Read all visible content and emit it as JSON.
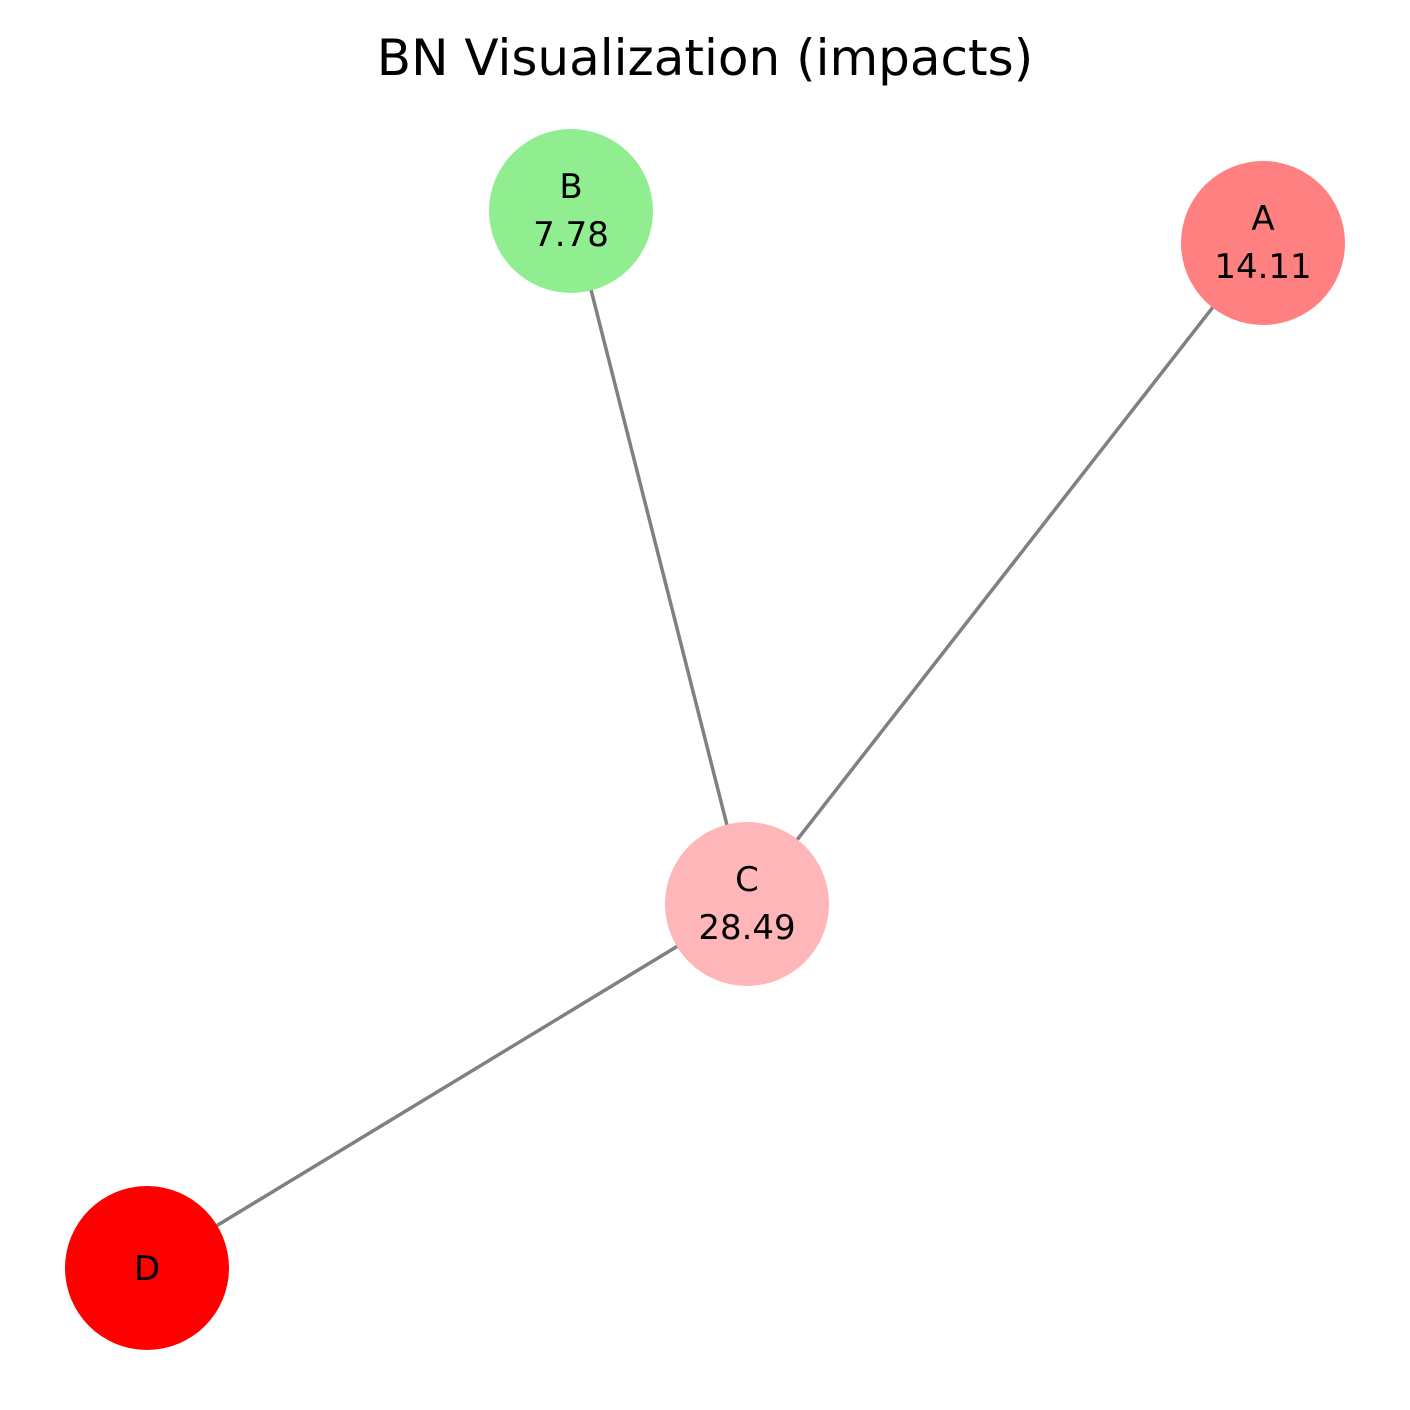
{
  "title": "BN Visualization (impacts)",
  "nodes": [
    {
      "id": "A",
      "name": "A",
      "value": "14.11",
      "color": "#ff8080"
    },
    {
      "id": "B",
      "name": "B",
      "value": "7.78",
      "color": "#90ee90"
    },
    {
      "id": "C",
      "name": "C",
      "value": "28.49",
      "color": "#ffb6b8"
    },
    {
      "id": "D",
      "name": "D",
      "value": "",
      "color": "#ff0000"
    }
  ],
  "edges": [
    {
      "from": "B",
      "to": "C"
    },
    {
      "from": "A",
      "to": "C"
    },
    {
      "from": "C",
      "to": "D"
    }
  ],
  "edge_color": "#808080"
}
